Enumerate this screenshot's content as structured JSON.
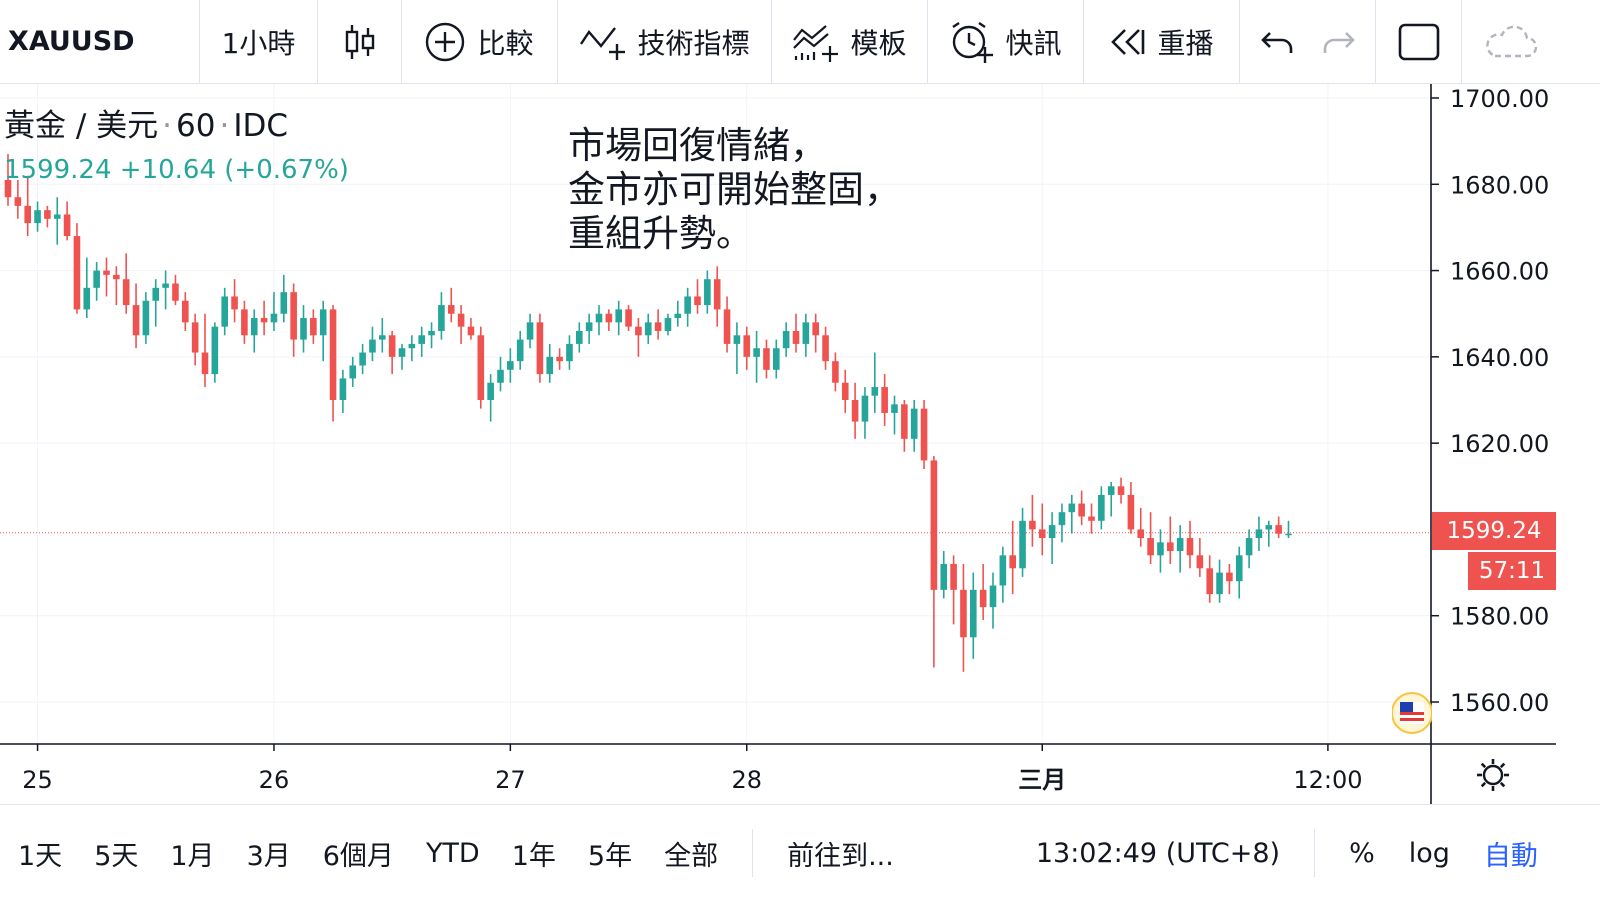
{
  "toolbar": {
    "symbol": "XAUUSD",
    "interval": "1小時",
    "compare": "比較",
    "indicators": "技術指標",
    "templates": "模板",
    "alerts": "快訊",
    "replay": "重播"
  },
  "legend": {
    "title": "黃金 / 美元",
    "interval": "60",
    "source": "IDC",
    "last": "1599.24",
    "change": "+10.64",
    "change_pct": "(+0.67%)"
  },
  "annotation": [
    "市場回復情緒，",
    "金市亦可開始整固，",
    "重組升勢。"
  ],
  "price_label": "1599.24",
  "countdown": "57:11",
  "bottom": {
    "ranges": [
      "1天",
      "5天",
      "1月",
      "3月",
      "6個月",
      "YTD",
      "1年",
      "5年",
      "全部"
    ],
    "goto": "前往到...",
    "time": "13:02:49 (UTC+8)",
    "pct": "%",
    "log": "log",
    "auto": "自動"
  },
  "colors": {
    "up": "#26a69a",
    "down": "#ef5350",
    "grid": "#f0f3fa",
    "accent": "#2962ff"
  },
  "chart_data": {
    "type": "candlestick",
    "y_ticks": [
      1700,
      1680,
      1660,
      1640,
      1620,
      1580,
      1560
    ],
    "ylim": [
      1552,
      1705
    ],
    "x_ticks": [
      {
        "label": "25",
        "i": 3
      },
      {
        "label": "26",
        "i": 27
      },
      {
        "label": "27",
        "i": 51
      },
      {
        "label": "28",
        "i": 75
      },
      {
        "label": "三月",
        "i": 105
      },
      {
        "label": "12:00",
        "i": 134
      }
    ],
    "last_price": 1599.24,
    "candles": [
      [
        1681,
        1687,
        1675,
        1677
      ],
      [
        1677,
        1681,
        1672,
        1675
      ],
      [
        1675,
        1682,
        1668,
        1671
      ],
      [
        1671,
        1676,
        1669,
        1674
      ],
      [
        1674,
        1675,
        1670,
        1672
      ],
      [
        1672,
        1677,
        1666,
        1673
      ],
      [
        1673,
        1676,
        1667,
        1668
      ],
      [
        1668,
        1671,
        1650,
        1651
      ],
      [
        1651,
        1663,
        1649,
        1656
      ],
      [
        1656,
        1662,
        1653,
        1660
      ],
      [
        1660,
        1663,
        1654,
        1659
      ],
      [
        1659,
        1661,
        1652,
        1658
      ],
      [
        1658,
        1664,
        1650,
        1652
      ],
      [
        1652,
        1657,
        1642,
        1645
      ],
      [
        1645,
        1655,
        1643,
        1653
      ],
      [
        1653,
        1658,
        1647,
        1656
      ],
      [
        1656,
        1660,
        1651,
        1657
      ],
      [
        1657,
        1659,
        1652,
        1653
      ],
      [
        1653,
        1655,
        1646,
        1648
      ],
      [
        1648,
        1650,
        1638,
        1641
      ],
      [
        1641,
        1650,
        1633,
        1636
      ],
      [
        1636,
        1648,
        1634,
        1647
      ],
      [
        1647,
        1656,
        1645,
        1654
      ],
      [
        1654,
        1658,
        1648,
        1651
      ],
      [
        1651,
        1653,
        1643,
        1645
      ],
      [
        1645,
        1651,
        1641,
        1649
      ],
      [
        1649,
        1653,
        1645,
        1648
      ],
      [
        1648,
        1655,
        1646,
        1650
      ],
      [
        1650,
        1659,
        1648,
        1655
      ],
      [
        1655,
        1657,
        1640,
        1644
      ],
      [
        1644,
        1652,
        1641,
        1649
      ],
      [
        1649,
        1651,
        1643,
        1645
      ],
      [
        1645,
        1653,
        1639,
        1651
      ],
      [
        1651,
        1652,
        1625,
        1630
      ],
      [
        1630,
        1637,
        1627,
        1635
      ],
      [
        1635,
        1640,
        1633,
        1638
      ],
      [
        1638,
        1643,
        1636,
        1641
      ],
      [
        1641,
        1647,
        1639,
        1644
      ],
      [
        1644,
        1649,
        1641,
        1645
      ],
      [
        1645,
        1646,
        1636,
        1640
      ],
      [
        1640,
        1643,
        1637,
        1642
      ],
      [
        1642,
        1645,
        1639,
        1643
      ],
      [
        1643,
        1647,
        1640,
        1645
      ],
      [
        1645,
        1648,
        1642,
        1646
      ],
      [
        1646,
        1655,
        1644,
        1652
      ],
      [
        1652,
        1656,
        1648,
        1650
      ],
      [
        1650,
        1652,
        1643,
        1647
      ],
      [
        1647,
        1649,
        1644,
        1645
      ],
      [
        1645,
        1647,
        1628,
        1630
      ],
      [
        1630,
        1636,
        1625,
        1634
      ],
      [
        1634,
        1640,
        1632,
        1637
      ],
      [
        1637,
        1642,
        1634,
        1639
      ],
      [
        1639,
        1646,
        1637,
        1644
      ],
      [
        1644,
        1650,
        1642,
        1648
      ],
      [
        1648,
        1650,
        1634,
        1636
      ],
      [
        1636,
        1643,
        1634,
        1640
      ],
      [
        1640,
        1642,
        1637,
        1639
      ],
      [
        1639,
        1645,
        1637,
        1643
      ],
      [
        1643,
        1648,
        1641,
        1646
      ],
      [
        1646,
        1650,
        1643,
        1648
      ],
      [
        1648,
        1652,
        1645,
        1650
      ],
      [
        1650,
        1651,
        1646,
        1648
      ],
      [
        1648,
        1653,
        1645,
        1651
      ],
      [
        1651,
        1652,
        1646,
        1647
      ],
      [
        1647,
        1649,
        1640,
        1645
      ],
      [
        1645,
        1650,
        1643,
        1648
      ],
      [
        1648,
        1651,
        1644,
        1646
      ],
      [
        1646,
        1650,
        1645,
        1649
      ],
      [
        1649,
        1653,
        1647,
        1650
      ],
      [
        1650,
        1656,
        1647,
        1654
      ],
      [
        1654,
        1658,
        1650,
        1652
      ],
      [
        1652,
        1660,
        1650,
        1658
      ],
      [
        1658,
        1661,
        1647,
        1651
      ],
      [
        1651,
        1654,
        1641,
        1643
      ],
      [
        1643,
        1648,
        1636,
        1645
      ],
      [
        1645,
        1647,
        1637,
        1640
      ],
      [
        1640,
        1646,
        1634,
        1642
      ],
      [
        1642,
        1644,
        1635,
        1637
      ],
      [
        1637,
        1644,
        1635,
        1642
      ],
      [
        1642,
        1648,
        1640,
        1646
      ],
      [
        1646,
        1650,
        1641,
        1643
      ],
      [
        1643,
        1650,
        1640,
        1648
      ],
      [
        1648,
        1650,
        1641,
        1645
      ],
      [
        1645,
        1647,
        1637,
        1639
      ],
      [
        1639,
        1641,
        1632,
        1634
      ],
      [
        1634,
        1637,
        1627,
        1630
      ],
      [
        1630,
        1634,
        1621,
        1625
      ],
      [
        1625,
        1633,
        1621,
        1631
      ],
      [
        1631,
        1641,
        1627,
        1633
      ],
      [
        1633,
        1636,
        1624,
        1627
      ],
      [
        1627,
        1631,
        1622,
        1629
      ],
      [
        1629,
        1630,
        1618,
        1621
      ],
      [
        1621,
        1630,
        1618,
        1628
      ],
      [
        1628,
        1630,
        1614,
        1616
      ],
      [
        1616,
        1617,
        1568,
        1586
      ],
      [
        1586,
        1595,
        1584,
        1592
      ],
      [
        1592,
        1594,
        1578,
        1586
      ],
      [
        1586,
        1592,
        1567,
        1575
      ],
      [
        1575,
        1590,
        1570,
        1586
      ],
      [
        1586,
        1592,
        1579,
        1582
      ],
      [
        1582,
        1590,
        1577,
        1587
      ],
      [
        1587,
        1596,
        1583,
        1594
      ],
      [
        1594,
        1602,
        1585,
        1591
      ],
      [
        1591,
        1605,
        1589,
        1602
      ],
      [
        1602,
        1608,
        1596,
        1600
      ],
      [
        1600,
        1606,
        1594,
        1598
      ],
      [
        1598,
        1604,
        1592,
        1601
      ],
      [
        1601,
        1606,
        1597,
        1604
      ],
      [
        1604,
        1608,
        1599,
        1606
      ],
      [
        1606,
        1609,
        1601,
        1603
      ],
      [
        1603,
        1606,
        1599,
        1602
      ],
      [
        1602,
        1610,
        1600,
        1608
      ],
      [
        1608,
        1611,
        1603,
        1610
      ],
      [
        1610,
        1612,
        1606,
        1608
      ],
      [
        1608,
        1611,
        1599,
        1600
      ],
      [
        1600,
        1605,
        1596,
        1598
      ],
      [
        1598,
        1604,
        1592,
        1594
      ],
      [
        1594,
        1600,
        1590,
        1597
      ],
      [
        1597,
        1603,
        1592,
        1595
      ],
      [
        1595,
        1601,
        1590,
        1598
      ],
      [
        1598,
        1602,
        1591,
        1594
      ],
      [
        1594,
        1598,
        1589,
        1591
      ],
      [
        1591,
        1594,
        1583,
        1585
      ],
      [
        1585,
        1593,
        1583,
        1590
      ],
      [
        1590,
        1592,
        1585,
        1588
      ],
      [
        1588,
        1596,
        1584,
        1594
      ],
      [
        1594,
        1600,
        1591,
        1598
      ],
      [
        1598,
        1603,
        1595,
        1600
      ],
      [
        1600,
        1602,
        1596,
        1601
      ],
      [
        1601,
        1603,
        1598,
        1599
      ],
      [
        1599,
        1602,
        1598,
        1599
      ]
    ]
  }
}
